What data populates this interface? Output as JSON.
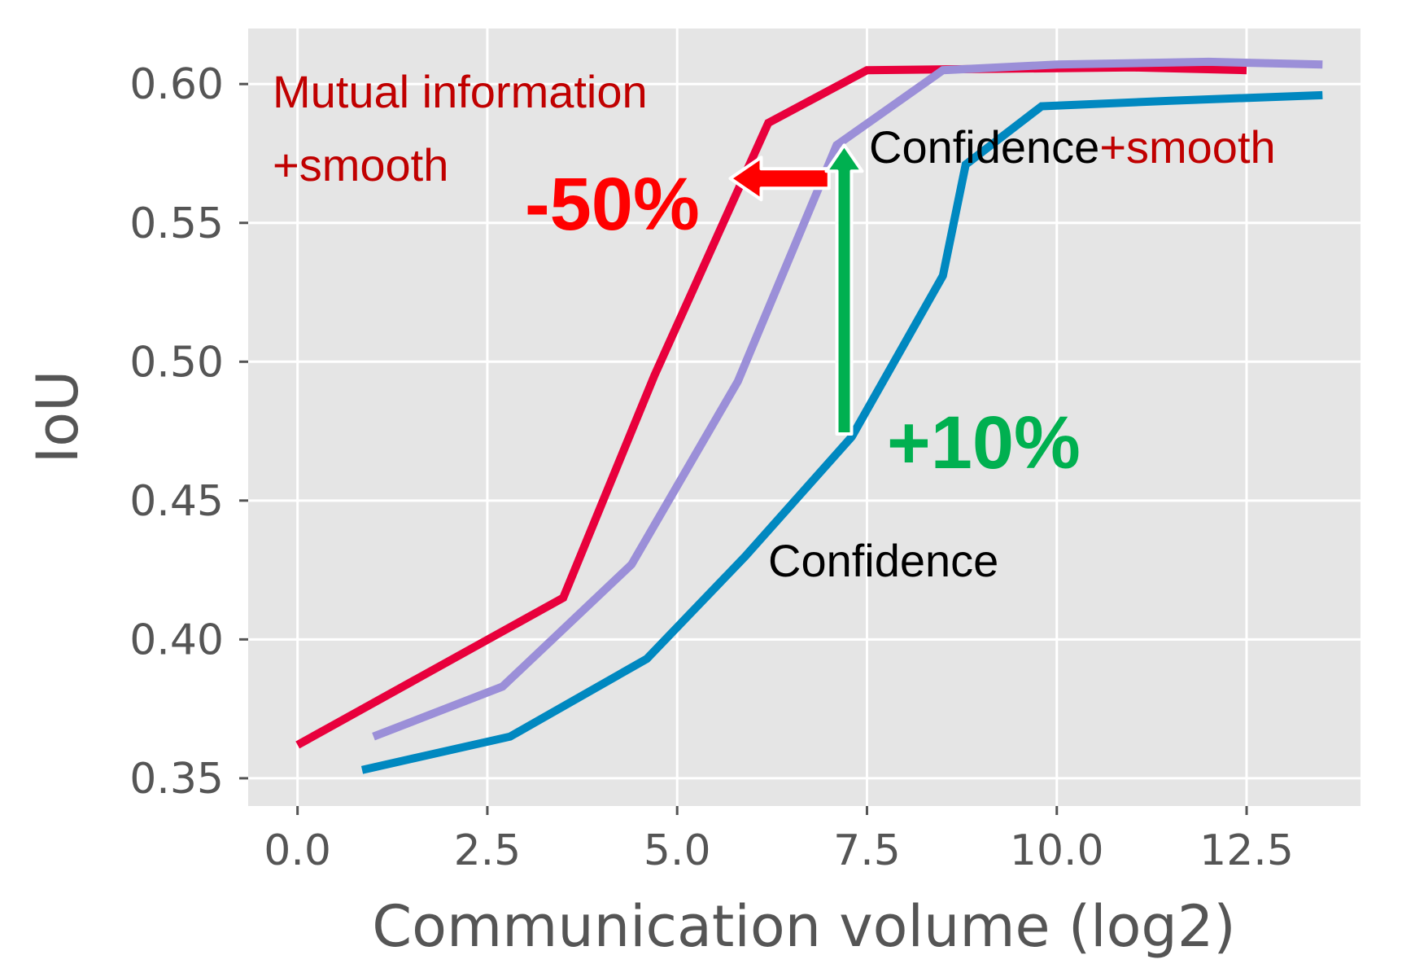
{
  "chart_data": {
    "type": "line",
    "title": "",
    "xlabel": "Communication volume (log2)",
    "ylabel": "IoU",
    "xlim": [
      -0.65,
      14.0
    ],
    "ylim": [
      0.34,
      0.62
    ],
    "xticks": [
      0.0,
      2.5,
      5.0,
      7.5,
      10.0,
      12.5
    ],
    "xtick_labels": [
      "0.0",
      "2.5",
      "5.0",
      "7.5",
      "10.0",
      "12.5"
    ],
    "yticks": [
      0.35,
      0.4,
      0.45,
      0.5,
      0.55,
      0.6
    ],
    "ytick_labels": [
      "0.35",
      "0.40",
      "0.45",
      "0.50",
      "0.55",
      "0.60"
    ],
    "grid": true,
    "series": [
      {
        "name": "Mutual information +smooth",
        "color": "#E8003C",
        "x": [
          0.0,
          3.5,
          4.7,
          6.2,
          7.5,
          11.0,
          12.5
        ],
        "y": [
          0.362,
          0.415,
          0.495,
          0.586,
          0.605,
          0.606,
          0.605
        ]
      },
      {
        "name": "Confidence+smooth",
        "color": "#9B8FD8",
        "x": [
          1.0,
          2.7,
          4.4,
          5.8,
          7.1,
          8.5,
          10.0,
          12.0,
          13.5
        ],
        "y": [
          0.365,
          0.383,
          0.427,
          0.493,
          0.578,
          0.605,
          0.607,
          0.608,
          0.607
        ]
      },
      {
        "name": "Confidence",
        "color": "#0088C0",
        "x": [
          0.85,
          2.8,
          4.6,
          5.9,
          7.3,
          8.5,
          8.8,
          9.8,
          11.5,
          13.5
        ],
        "y": [
          0.353,
          0.365,
          0.393,
          0.43,
          0.473,
          0.531,
          0.571,
          0.592,
          0.594,
          0.596
        ]
      }
    ],
    "annotations": {
      "mi_label_line1": "Mutual information",
      "mi_label_line2": "+smooth",
      "conf_smooth_black": "Confidence",
      "conf_smooth_red": "+smooth",
      "conf_label": "Confidence",
      "reduction_label": "-50%",
      "gain_label": "+10%",
      "red_color": "#C00000",
      "bright_red_color": "#FF0000",
      "green_color": "#00B050",
      "black_color": "#000000",
      "red_arrow": {
        "from_x": 7.0,
        "to_x": 5.7,
        "y": 0.566
      },
      "green_arrow": {
        "x": 7.2,
        "from_y": 0.474,
        "to_y": 0.578
      }
    }
  }
}
